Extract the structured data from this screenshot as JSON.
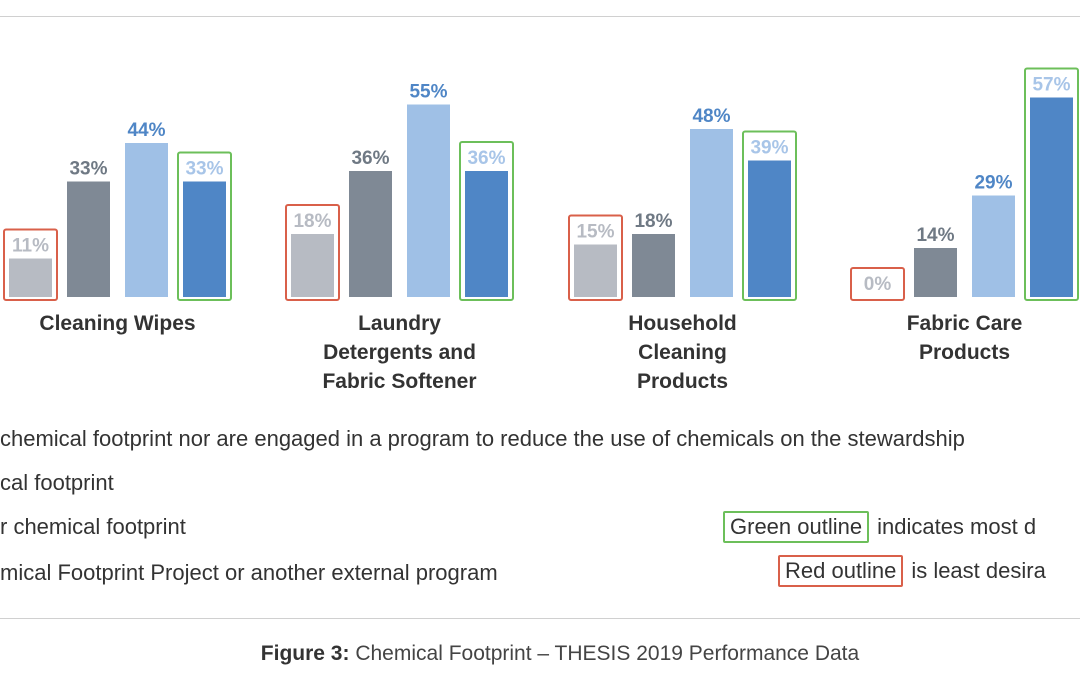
{
  "chart_data": {
    "type": "bar",
    "categories": [
      [
        "Cleaning Wipes"
      ],
      [
        "Laundry",
        "Detergents and",
        "Fabric Softener"
      ],
      [
        "Household",
        "Cleaning",
        "Products"
      ],
      [
        "Fabric Care",
        "Products"
      ]
    ],
    "series": [
      {
        "values": [
          11,
          18,
          15,
          0
        ],
        "color": "#b7bbc3",
        "label_color": "#b7bbc3"
      },
      {
        "values": [
          33,
          36,
          18,
          14
        ],
        "color": "#7f8995",
        "label_color": "#6f7984"
      },
      {
        "values": [
          44,
          55,
          48,
          29
        ],
        "color": "#9fc0e6",
        "label_color": "#4f86c6"
      },
      {
        "values": [
          33,
          36,
          39,
          57
        ],
        "color": "#4f86c6",
        "label_color": "#a8c5e8"
      }
    ],
    "value_suffix": "%",
    "outlines": [
      {
        "category": 0,
        "series": 0,
        "color": "red"
      },
      {
        "category": 0,
        "series": 3,
        "color": "green"
      },
      {
        "category": 1,
        "series": 0,
        "color": "red"
      },
      {
        "category": 1,
        "series": 3,
        "color": "green"
      },
      {
        "category": 2,
        "series": 0,
        "color": "red"
      },
      {
        "category": 2,
        "series": 3,
        "color": "green"
      },
      {
        "category": 3,
        "series": 0,
        "color": "red"
      },
      {
        "category": 3,
        "series": 3,
        "color": "green"
      }
    ],
    "colors": {
      "red_outline": "#d9604a",
      "green_outline": "#6cbf5a"
    },
    "ylim": [
      0,
      60
    ],
    "grid": false
  },
  "legend": {
    "lines": [
      "chemical footprint nor are engaged in a program to reduce the use of chemicals on the stewardship",
      "cal footprint",
      "r chemical footprint",
      "mical Footprint Project or another external program"
    ],
    "green_note": {
      "box_label": "Green outline",
      "text": "indicates most d"
    },
    "red_note": {
      "box_label": "Red outline",
      "text": "is least desira"
    }
  },
  "caption": {
    "bold": "Figure 3:",
    "text": "Chemical Footprint – THESIS 2019 Performance Data"
  }
}
